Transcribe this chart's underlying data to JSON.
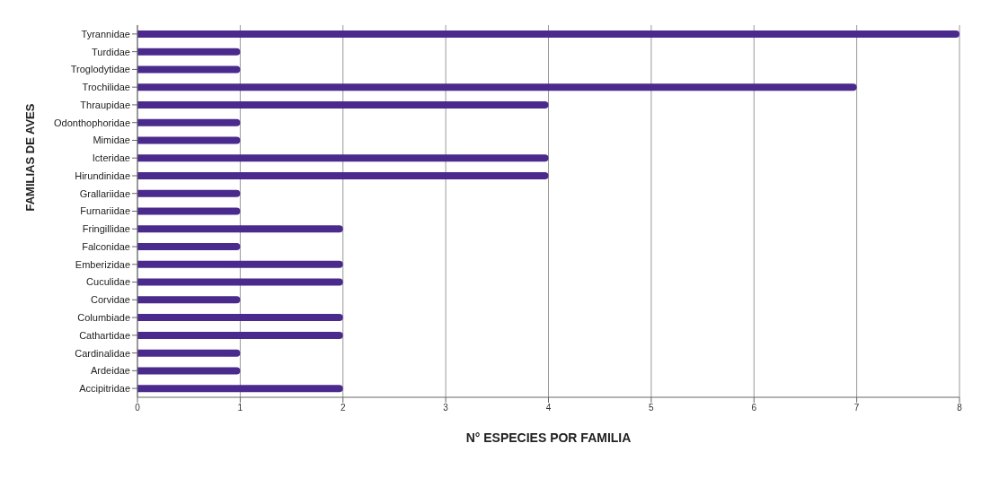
{
  "chart_data": {
    "type": "bar",
    "orientation": "horizontal",
    "xlabel": "N° ESPECIES POR FAMILIA",
    "ylabel": "FAMILIAS DE AVES",
    "categories": [
      "Tyrannidae",
      "Turdidae",
      "Troglodytidae",
      "Trochilidae",
      "Thraupidae",
      "Odonthophoridae",
      "Mimidae",
      "Icteridae",
      "Hirundinidae",
      "Grallariidae",
      "Furnariidae",
      "Fringillidae",
      "Falconidae",
      "Emberizidae",
      "Cuculidae",
      "Corvidae",
      "Columbiade",
      "Cathartidae",
      "Cardinalidae",
      "Ardeidae",
      "Accipitridae"
    ],
    "values": [
      8,
      1,
      1,
      7,
      4,
      1,
      1,
      4,
      4,
      1,
      1,
      2,
      1,
      2,
      2,
      1,
      2,
      2,
      1,
      1,
      2
    ],
    "color": "#4a2a8c",
    "xlim": [
      0,
      8
    ],
    "xticks": [
      0,
      1,
      2,
      3,
      4,
      5,
      6,
      7,
      8
    ],
    "grid": "x"
  }
}
